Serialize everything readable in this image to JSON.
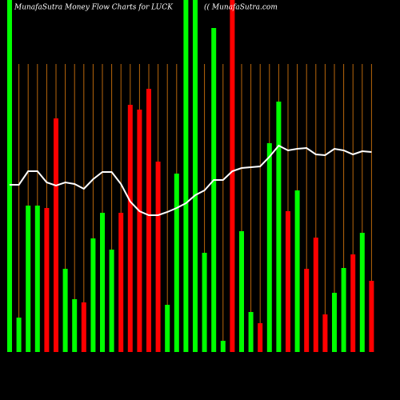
{
  "chart_data": {
    "type": "bar",
    "title": "MunafaSutra  Money Flow  Charts for LUCK",
    "subtitle": "(( MunafaSutra.com",
    "categories": [
      null,
      null,
      null,
      null,
      null,
      null,
      null,
      null,
      null,
      null,
      null,
      null,
      null,
      null,
      null,
      null,
      null,
      null,
      null,
      null,
      null,
      null,
      null,
      null,
      null,
      null,
      null,
      null,
      null,
      null,
      null,
      null,
      null,
      null,
      null,
      null,
      null,
      null,
      null,
      null
    ],
    "values": [
      440,
      43,
      183,
      183,
      180,
      292,
      104,
      66,
      62,
      142,
      174,
      128,
      174,
      309,
      303,
      329,
      238,
      59,
      223,
      440,
      440,
      124,
      405,
      14,
      440,
      151,
      50,
      36,
      261,
      313,
      176,
      202,
      104,
      143,
      47,
      74,
      105,
      122,
      149,
      89
    ],
    "colors": [
      "#00ff00",
      "#00ff00",
      "#00ff00",
      "#00ff00",
      "#ff0000",
      "#ff0000",
      "#00ff00",
      "#00ff00",
      "#ff0000",
      "#00ff00",
      "#00ff00",
      "#00ff00",
      "#ff0000",
      "#ff0000",
      "#ff0000",
      "#ff0000",
      "#ff0000",
      "#00ff00",
      "#00ff00",
      "#00ff00",
      "#00ff00",
      "#00ff00",
      "#00ff00",
      "#00ff00",
      "#ff0000",
      "#00ff00",
      "#00ff00",
      "#ff0000",
      "#00ff00",
      "#00ff00",
      "#ff0000",
      "#00ff00",
      "#ff0000",
      "#ff0000",
      "#ff0000",
      "#00ff00",
      "#00ff00",
      "#ff0000",
      "#00ff00",
      "#ff0000"
    ],
    "line_values": [
      209,
      209,
      226,
      226,
      212,
      208,
      212,
      210,
      204,
      216,
      225,
      225,
      210,
      188,
      176,
      171,
      171,
      175,
      180,
      186,
      196,
      202,
      215,
      215,
      226,
      230,
      231,
      232,
      244,
      258,
      252,
      254,
      255,
      247,
      246,
      254,
      252,
      247,
      251,
      250
    ],
    "line_color": "#ffffff",
    "grid_color": "#b8660b",
    "background": "#000000",
    "ylim": [
      0,
      440
    ],
    "grid": true
  }
}
